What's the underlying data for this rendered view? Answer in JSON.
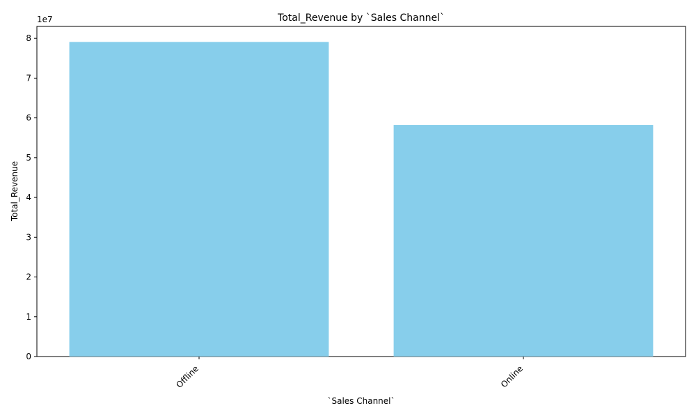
{
  "chart_data": {
    "type": "bar",
    "title": "Total_Revenue by `Sales Channel`",
    "xlabel": "`Sales Channel`",
    "ylabel": "Total_Revenue",
    "categories": [
      "Offline",
      "Online"
    ],
    "values": [
      79100000,
      58200000
    ],
    "ylim": [
      0,
      83000000
    ],
    "y_ticks": [
      0,
      10000000,
      20000000,
      30000000,
      40000000,
      50000000,
      60000000,
      70000000,
      80000000
    ],
    "y_tick_labels": [
      "0",
      "1",
      "2",
      "3",
      "4",
      "5",
      "6",
      "7",
      "8"
    ],
    "y_offset_label": "1e7",
    "bar_color": "#87ceeb",
    "grid": false,
    "x_tick_rotation": 45
  }
}
